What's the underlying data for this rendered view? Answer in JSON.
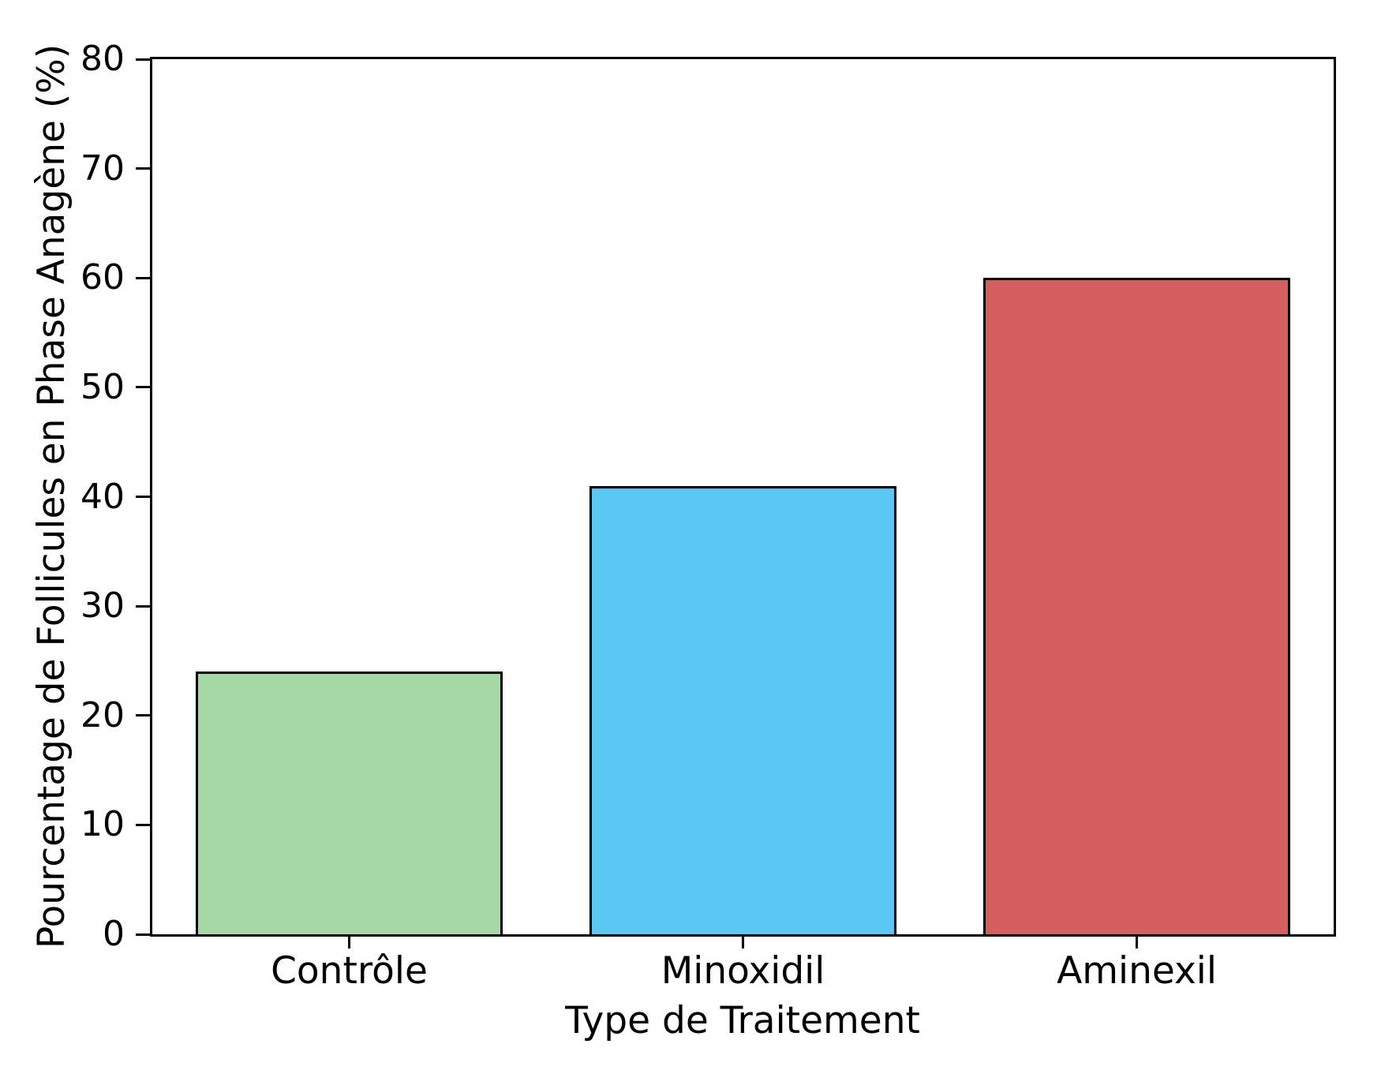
{
  "figure": {
    "background": "#ffffff",
    "text_color": "#000000",
    "spine_color": "#000000"
  },
  "chart_data": {
    "type": "bar",
    "categories": [
      "Contrôle",
      "Minoxidil",
      "Aminexil"
    ],
    "values": [
      24,
      41,
      60
    ],
    "bar_colors": [
      "#a5d8a5",
      "#5cc7f4",
      "#d45e5e"
    ],
    "bar_edge_color": "#000000",
    "title": "",
    "xlabel": "Type de Traitement",
    "ylabel": "Pourcentage de Follicules en Phase Anagène (%)",
    "ylim": [
      0,
      80
    ],
    "yticks": [
      0,
      10,
      20,
      30,
      40,
      50,
      60,
      70,
      80
    ],
    "grid": false,
    "legend": null,
    "bar_width_fraction": 0.78
  }
}
